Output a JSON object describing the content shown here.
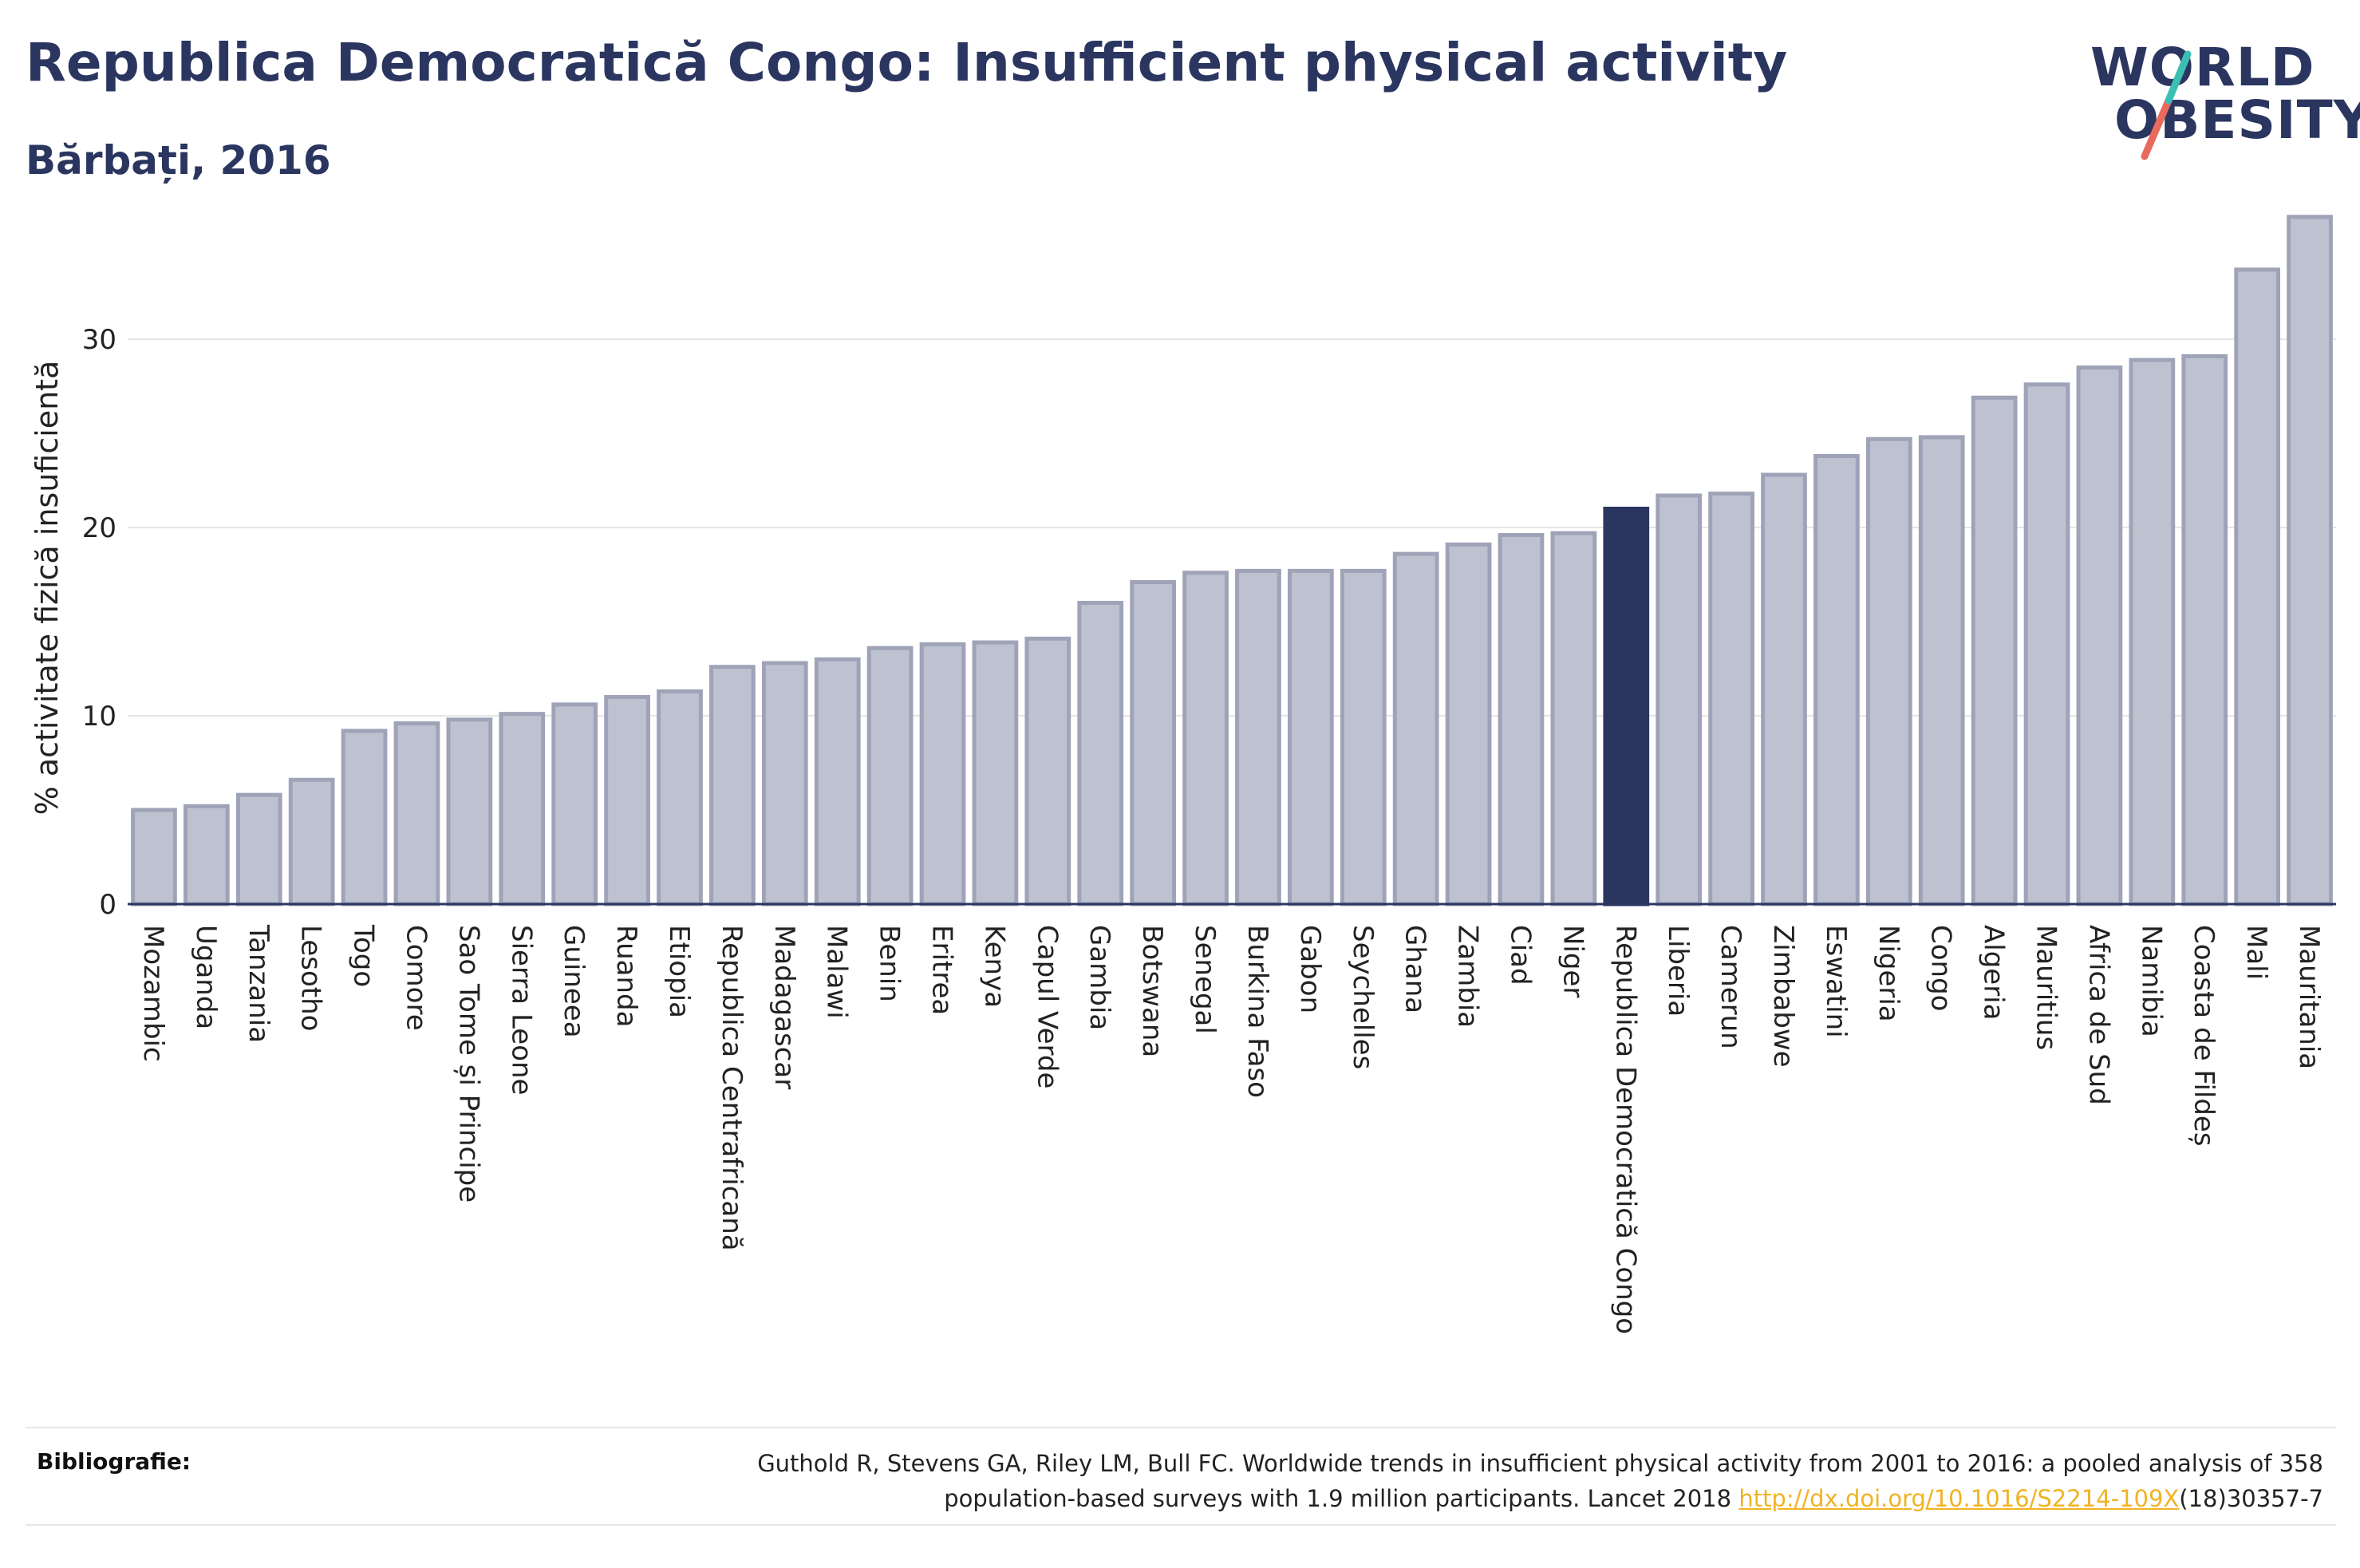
{
  "header": {
    "title": "Republica Democratică Congo: Insufficient physical activity",
    "subtitle": "Bărbați, 2016"
  },
  "logo": {
    "line1": "WORLD",
    "line2": "OBESITY",
    "colors": [
      "#2b3660",
      "#e86a5c",
      "#3bbfb3"
    ]
  },
  "footer": {
    "label": "Bibliografie:",
    "text_line1": "Guthold R, Stevens GA, Riley LM, Bull FC. Worldwide trends in insufficient physical activity from 2001 to 2016: a pooled analysis of 358",
    "text_line2_prefix": "population-based surveys with 1.9 million participants. Lancet 2018 ",
    "link": "http://dx.doi.org/10.1016/S2214-109X",
    "text_line2_suffix": "(18)30357-7"
  },
  "chart_data": {
    "type": "bar",
    "ylabel": "% activitate fizică insuficientă",
    "xlabel": "",
    "ylim": [
      0,
      37
    ],
    "yticks": [
      0,
      10,
      20,
      30
    ],
    "grid": true,
    "highlight": "Republica Democratică Congo",
    "colors": {
      "bar": "#bec2d0",
      "bar_border": "#9ea3b8",
      "highlight": "#2b3660",
      "grid": "#e5e5e5",
      "axis": "#2b3660"
    },
    "categories": [
      "Mozambic",
      "Uganda",
      "Tanzania",
      "Lesotho",
      "Togo",
      "Comore",
      "Sao Tome și Principe",
      "Sierra Leone",
      "Guineea",
      "Ruanda",
      "Etiopia",
      "Republica Centrafricană",
      "Madagascar",
      "Malawi",
      "Benin",
      "Eritrea",
      "Kenya",
      "Capul Verde",
      "Gambia",
      "Botswana",
      "Senegal",
      "Burkina Faso",
      "Gabon",
      "Seychelles",
      "Ghana",
      "Zambia",
      "Ciad",
      "Niger",
      "Republica Democratică Congo",
      "Liberia",
      "Camerun",
      "Zimbabwe",
      "Eswatini",
      "Nigeria",
      "Congo",
      "Algeria",
      "Mauritius",
      "Africa de Sud",
      "Namibia",
      "Coasta de Fildeș",
      "Mali",
      "Mauritania"
    ],
    "values": [
      5.0,
      5.2,
      5.8,
      6.6,
      9.2,
      9.6,
      9.8,
      10.1,
      10.6,
      11.0,
      11.3,
      12.6,
      12.8,
      13.0,
      13.6,
      13.8,
      13.9,
      14.1,
      16.0,
      17.1,
      17.6,
      17.7,
      17.7,
      17.7,
      18.6,
      19.1,
      19.6,
      19.7,
      21.0,
      21.7,
      21.8,
      22.8,
      23.8,
      24.7,
      24.8,
      26.9,
      27.6,
      28.5,
      28.9,
      29.1,
      33.7,
      36.5
    ]
  }
}
